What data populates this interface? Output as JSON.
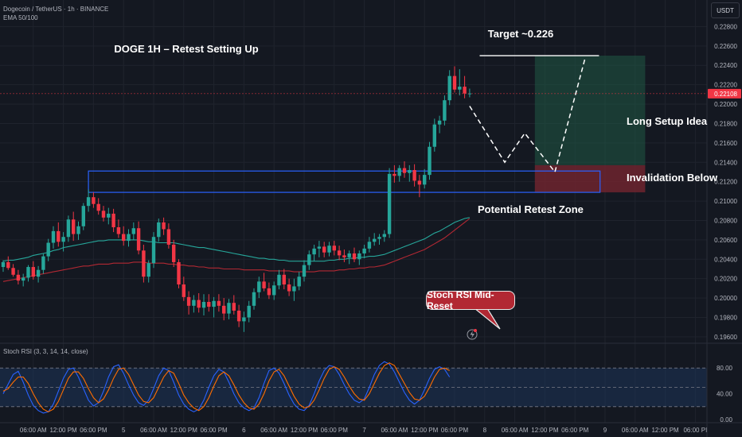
{
  "header": {
    "symbol_line": "Dogecoin / TetherUS · 1h · BINANCE",
    "indicator_line": "EMA 50/100"
  },
  "currency_button": "USDT",
  "chart_data": {
    "type": "candlestick",
    "title": "DOGE 1H – Retest Setting Up",
    "price_axis": {
      "ticks": [
        "0.22800",
        "0.22600",
        "0.22400",
        "0.22200",
        "0.22000",
        "0.21800",
        "0.21600",
        "0.21400",
        "0.21200",
        "0.21000",
        "0.20800",
        "0.20600",
        "0.20400",
        "0.20200",
        "0.20000",
        "0.19800",
        "0.19600"
      ],
      "ylim": [
        0.1955,
        0.2291
      ],
      "last_price": "0.22108",
      "last_price_color": "#f23645"
    },
    "time_axis": {
      "labels": [
        "06:00 AM",
        "12:00 PM",
        "06:00 PM",
        "5",
        "06:00 AM",
        "12:00 PM",
        "06:00 PM",
        "6",
        "06:00 AM",
        "12:00 PM",
        "06:00 PM",
        "7",
        "06:00 AM",
        "12:00 PM",
        "06:00 PM",
        "8",
        "06:00 AM",
        "12:00 PM",
        "06:00 PM",
        "9",
        "06:00 AM",
        "12:00 PM",
        "06:00 PI"
      ],
      "bar_index": [
        6,
        12,
        18,
        24,
        30,
        36,
        42,
        48,
        54,
        60,
        66,
        72,
        78,
        84,
        90,
        96,
        102,
        108,
        114,
        120,
        126,
        132,
        138
      ]
    },
    "candles": [
      [
        0.2032,
        0.2039,
        0.2027,
        0.2037
      ],
      [
        0.2037,
        0.2043,
        0.2029,
        0.2031
      ],
      [
        0.2031,
        0.2035,
        0.2022,
        0.2024
      ],
      [
        0.2024,
        0.2029,
        0.2014,
        0.2018
      ],
      [
        0.2018,
        0.2025,
        0.2012,
        0.2021
      ],
      [
        0.2021,
        0.2034,
        0.2017,
        0.2032
      ],
      [
        0.2032,
        0.2038,
        0.2019,
        0.2022
      ],
      [
        0.2022,
        0.2033,
        0.2016,
        0.2029
      ],
      [
        0.2029,
        0.2046,
        0.2025,
        0.2043
      ],
      [
        0.2043,
        0.2061,
        0.2038,
        0.2057
      ],
      [
        0.2057,
        0.2074,
        0.2051,
        0.2069
      ],
      [
        0.2069,
        0.2078,
        0.2053,
        0.2058
      ],
      [
        0.2058,
        0.2068,
        0.2048,
        0.2063
      ],
      [
        0.2063,
        0.2085,
        0.2058,
        0.2081
      ],
      [
        0.2081,
        0.2089,
        0.2059,
        0.2066
      ],
      [
        0.2066,
        0.2079,
        0.206,
        0.2074
      ],
      [
        0.2074,
        0.2098,
        0.207,
        0.2095
      ],
      [
        0.2095,
        0.2112,
        0.2089,
        0.2104
      ],
      [
        0.2104,
        0.2109,
        0.2093,
        0.2097
      ],
      [
        0.2097,
        0.2103,
        0.2086,
        0.209
      ],
      [
        0.209,
        0.2095,
        0.2079,
        0.2083
      ],
      [
        0.2083,
        0.2093,
        0.2076,
        0.2087
      ],
      [
        0.2087,
        0.2092,
        0.2068,
        0.2073
      ],
      [
        0.2073,
        0.2081,
        0.2062,
        0.2066
      ],
      [
        0.2066,
        0.2074,
        0.2054,
        0.2059
      ],
      [
        0.2059,
        0.2071,
        0.2053,
        0.2066
      ],
      [
        0.2066,
        0.2078,
        0.206,
        0.2072
      ],
      [
        0.2072,
        0.2079,
        0.2045,
        0.2049
      ],
      [
        0.2049,
        0.2055,
        0.2016,
        0.2022
      ],
      [
        0.2022,
        0.2039,
        0.2016,
        0.2036
      ],
      [
        0.2036,
        0.2068,
        0.2031,
        0.2063
      ],
      [
        0.2063,
        0.2082,
        0.2058,
        0.2078
      ],
      [
        0.2078,
        0.2083,
        0.2065,
        0.2071
      ],
      [
        0.2071,
        0.2077,
        0.2051,
        0.2055
      ],
      [
        0.2055,
        0.206,
        0.2032,
        0.2037
      ],
      [
        0.2037,
        0.204,
        0.201,
        0.2014
      ],
      [
        0.2014,
        0.2022,
        0.1997,
        0.2001
      ],
      [
        0.2001,
        0.2007,
        0.1983,
        0.1992
      ],
      [
        0.1992,
        0.2003,
        0.1985,
        0.1998
      ],
      [
        0.1998,
        0.2005,
        0.1985,
        0.199
      ],
      [
        0.199,
        0.2004,
        0.1982,
        0.1996
      ],
      [
        0.1996,
        0.2004,
        0.1986,
        0.1991
      ],
      [
        0.1991,
        0.2001,
        0.198,
        0.1997
      ],
      [
        0.1997,
        0.2004,
        0.1986,
        0.1992
      ],
      [
        0.1992,
        0.2,
        0.1977,
        0.1984
      ],
      [
        0.1984,
        0.1999,
        0.1978,
        0.1995
      ],
      [
        0.1995,
        0.2003,
        0.1983,
        0.1987
      ],
      [
        0.1987,
        0.1993,
        0.197,
        0.1976
      ],
      [
        0.1976,
        0.1986,
        0.1965,
        0.198
      ],
      [
        0.198,
        0.1997,
        0.1975,
        0.1992
      ],
      [
        0.1992,
        0.201,
        0.1988,
        0.2006
      ],
      [
        0.2006,
        0.2022,
        0.2,
        0.2017
      ],
      [
        0.2017,
        0.2026,
        0.2007,
        0.201
      ],
      [
        0.201,
        0.2016,
        0.1999,
        0.2003
      ],
      [
        0.2003,
        0.2017,
        0.1998,
        0.2013
      ],
      [
        0.2013,
        0.2029,
        0.2009,
        0.2024
      ],
      [
        0.2024,
        0.203,
        0.2009,
        0.2014
      ],
      [
        0.2014,
        0.202,
        0.2002,
        0.2007
      ],
      [
        0.2007,
        0.202,
        0.1997,
        0.2012
      ],
      [
        0.2012,
        0.2027,
        0.2008,
        0.2022
      ],
      [
        0.2022,
        0.2039,
        0.2017,
        0.2034
      ],
      [
        0.2034,
        0.2049,
        0.2029,
        0.2045
      ],
      [
        0.2045,
        0.2055,
        0.2038,
        0.2051
      ],
      [
        0.2051,
        0.2059,
        0.2042,
        0.2053
      ],
      [
        0.2053,
        0.2058,
        0.2042,
        0.2047
      ],
      [
        0.2047,
        0.2058,
        0.2043,
        0.2054
      ],
      [
        0.2054,
        0.2059,
        0.2044,
        0.2049
      ],
      [
        0.2049,
        0.2054,
        0.2039,
        0.2044
      ],
      [
        0.2044,
        0.205,
        0.2037,
        0.2042
      ],
      [
        0.2042,
        0.2049,
        0.2035,
        0.2046
      ],
      [
        0.2046,
        0.2052,
        0.2037,
        0.204
      ],
      [
        0.204,
        0.2049,
        0.2034,
        0.2046
      ],
      [
        0.2046,
        0.2055,
        0.2041,
        0.2051
      ],
      [
        0.2051,
        0.2063,
        0.2047,
        0.2058
      ],
      [
        0.2058,
        0.2067,
        0.2054,
        0.2061
      ],
      [
        0.2061,
        0.2066,
        0.2055,
        0.2063
      ],
      [
        0.2063,
        0.207,
        0.2058,
        0.2066
      ],
      [
        0.2066,
        0.2134,
        0.2062,
        0.2128
      ],
      [
        0.2128,
        0.2137,
        0.2119,
        0.2126
      ],
      [
        0.2126,
        0.2137,
        0.212,
        0.2134
      ],
      [
        0.2134,
        0.2141,
        0.2124,
        0.2129
      ],
      [
        0.2129,
        0.2137,
        0.212,
        0.2132
      ],
      [
        0.2132,
        0.2138,
        0.2115,
        0.2121
      ],
      [
        0.2121,
        0.2127,
        0.2104,
        0.2117
      ],
      [
        0.2117,
        0.2133,
        0.2113,
        0.2127
      ],
      [
        0.2127,
        0.2161,
        0.2122,
        0.2156
      ],
      [
        0.2156,
        0.2185,
        0.2151,
        0.2179
      ],
      [
        0.2179,
        0.2188,
        0.217,
        0.2183
      ],
      [
        0.2183,
        0.2209,
        0.2178,
        0.2204
      ],
      [
        0.2204,
        0.2235,
        0.2199,
        0.2229
      ],
      [
        0.2229,
        0.2239,
        0.2212,
        0.2215
      ],
      [
        0.2215,
        0.2236,
        0.2209,
        0.2218
      ],
      [
        0.2218,
        0.2229,
        0.2206,
        0.2211
      ],
      [
        0.2211,
        0.2216,
        0.2207,
        0.2211
      ]
    ],
    "series": [
      {
        "name": "EMA 50",
        "color": "#26a69a",
        "values": [
          0.2038,
          0.2039,
          0.2039,
          0.204,
          0.2041,
          0.2042,
          0.2044,
          0.2045,
          0.2046,
          0.2047,
          0.2049,
          0.205,
          0.2052,
          0.2053,
          0.2054,
          0.2055,
          0.2056,
          0.2057,
          0.2058,
          0.2059,
          0.2059,
          0.206,
          0.206,
          0.206,
          0.206,
          0.206,
          0.206,
          0.206,
          0.2059,
          0.2058,
          0.2058,
          0.2057,
          0.2057,
          0.2057,
          0.2057,
          0.2056,
          0.2055,
          0.2054,
          0.2053,
          0.2052,
          0.2052,
          0.2051,
          0.205,
          0.2049,
          0.2048,
          0.2047,
          0.2046,
          0.2045,
          0.2044,
          0.2043,
          0.2042,
          0.2041,
          0.2041,
          0.204,
          0.204,
          0.2039,
          0.2039,
          0.2038,
          0.2038,
          0.2038,
          0.2038,
          0.2038,
          0.2038,
          0.2038,
          0.2038,
          0.2039,
          0.2039,
          0.204,
          0.204,
          0.2041,
          0.2041,
          0.2042,
          0.2042,
          0.2043,
          0.2043,
          0.2044,
          0.2045,
          0.2047,
          0.2049,
          0.2051,
          0.2053,
          0.2055,
          0.2057,
          0.2059,
          0.2061,
          0.2064,
          0.2067,
          0.2069,
          0.2072,
          0.2075,
          0.2078,
          0.208,
          0.2082,
          0.2083
        ]
      },
      {
        "name": "EMA 100",
        "color": "#b22833",
        "values": [
          0.2017,
          0.2018,
          0.2019,
          0.202,
          0.2021,
          0.2022,
          0.2023,
          0.2024,
          0.2025,
          0.2026,
          0.2027,
          0.2028,
          0.2029,
          0.203,
          0.2031,
          0.2032,
          0.2033,
          0.2033,
          0.2034,
          0.2035,
          0.2035,
          0.2035,
          0.2036,
          0.2036,
          0.2036,
          0.2036,
          0.2037,
          0.2037,
          0.2037,
          0.2036,
          0.2036,
          0.2036,
          0.2036,
          0.2035,
          0.2035,
          0.2034,
          0.2034,
          0.2033,
          0.2033,
          0.2032,
          0.2032,
          0.2031,
          0.2031,
          0.2031,
          0.203,
          0.203,
          0.203,
          0.203,
          0.2029,
          0.2029,
          0.2029,
          0.2029,
          0.2029,
          0.2028,
          0.2028,
          0.2028,
          0.2028,
          0.2028,
          0.2027,
          0.2027,
          0.2027,
          0.2027,
          0.2027,
          0.2028,
          0.2028,
          0.2028,
          0.2028,
          0.2029,
          0.2029,
          0.203,
          0.203,
          0.2031,
          0.2031,
          0.2032,
          0.2032,
          0.2033,
          0.2034,
          0.2036,
          0.2038,
          0.204,
          0.2042,
          0.2044,
          0.2046,
          0.2048,
          0.205,
          0.2053,
          0.2056,
          0.2059,
          0.2062,
          0.2066,
          0.207,
          0.2074,
          0.2078,
          0.2082
        ]
      }
    ],
    "annotations": {
      "target_label": "Target ~0.226",
      "long_setup": "Long Setup Idea",
      "invalidation": "Invalidation Below",
      "retest_zone": "Potential Retest Zone",
      "stoch_callout": "Stoch RSI Mid-Reset",
      "retest_zone_range": [
        0.2109,
        0.2131
      ],
      "zone_start_bar": 17,
      "zone_end_bar": 119,
      "target_level": 0.225,
      "target_start_bar": 95,
      "reward_range": [
        0.2137,
        0.225
      ],
      "risk_range": [
        0.2109,
        0.2137
      ],
      "box_start_bar": 106,
      "box_end_bar": 128,
      "projection_path": [
        [
          93,
          0.2198
        ],
        [
          100,
          0.214
        ],
        [
          104,
          0.217
        ],
        [
          110,
          0.213
        ],
        [
          116,
          0.2247
        ]
      ],
      "reward_color": "#1f5a45",
      "risk_color": "#7a2530",
      "zone_color": "#2962ff"
    },
    "stoch_rsi": {
      "label": "Stoch RSI (3, 3, 14, 14, close)",
      "ticks": [
        "80.00",
        "40.00",
        "0.00"
      ],
      "ylim": [
        0,
        100
      ],
      "bands": [
        20,
        50,
        80
      ],
      "k": [
        40,
        55,
        70,
        75,
        58,
        38,
        22,
        14,
        10,
        12,
        24,
        44,
        64,
        78,
        80,
        66,
        48,
        30,
        21,
        26,
        44,
        66,
        82,
        85,
        72,
        54,
        38,
        26,
        22,
        30,
        48,
        68,
        80,
        76,
        58,
        38,
        24,
        16,
        12,
        16,
        30,
        50,
        68,
        78,
        74,
        58,
        40,
        26,
        18,
        14,
        18,
        34,
        56,
        76,
        80,
        72,
        56,
        38,
        24,
        16,
        14,
        22,
        40,
        60,
        76,
        84,
        82,
        70,
        54,
        40,
        30,
        26,
        32,
        50,
        70,
        84,
        90,
        86,
        74,
        58,
        42,
        30,
        24,
        30,
        46,
        64,
        78,
        82,
        78,
        66
      ],
      "d": [
        44,
        48,
        58,
        66,
        66,
        56,
        40,
        26,
        16,
        12,
        16,
        28,
        46,
        64,
        74,
        74,
        64,
        48,
        34,
        26,
        32,
        46,
        64,
        78,
        80,
        70,
        54,
        38,
        28,
        26,
        34,
        50,
        66,
        76,
        72,
        56,
        38,
        26,
        18,
        14,
        20,
        34,
        52,
        68,
        74,
        68,
        54,
        38,
        26,
        18,
        16,
        24,
        40,
        60,
        74,
        78,
        68,
        52,
        36,
        24,
        18,
        20,
        30,
        46,
        64,
        78,
        82,
        78,
        66,
        52,
        40,
        32,
        30,
        40,
        56,
        72,
        84,
        88,
        84,
        70,
        56,
        42,
        32,
        30,
        36,
        50,
        66,
        78,
        80,
        76
      ]
    }
  }
}
